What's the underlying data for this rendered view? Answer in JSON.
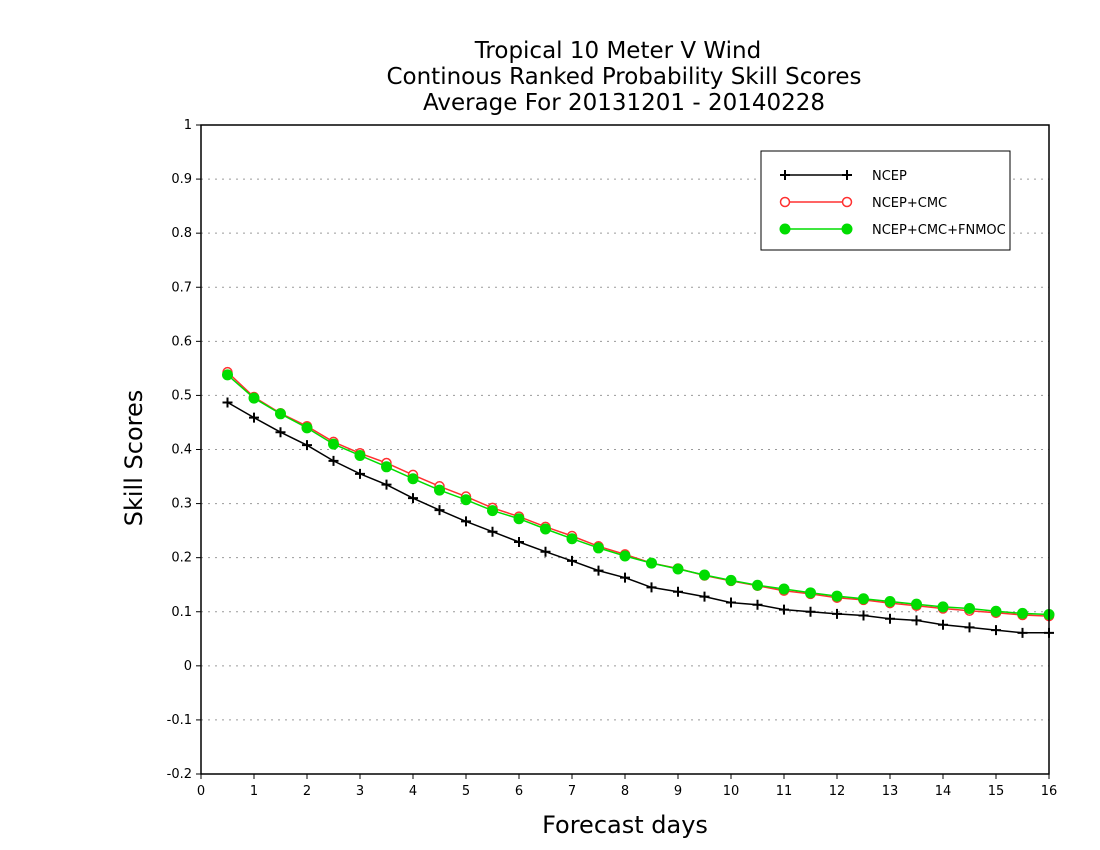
{
  "chart_data": {
    "type": "line",
    "title": [
      "Tropical 10 Meter V Wind",
      "Continous Ranked Probability Skill Scores",
      "Average For 20131201 - 20140228"
    ],
    "xlabel": "Forecast days",
    "ylabel": "Skill Scores",
    "xlim": [
      0,
      16
    ],
    "ylim": [
      -0.2,
      1
    ],
    "x_ticks": [
      0,
      1,
      2,
      3,
      4,
      5,
      6,
      7,
      8,
      9,
      10,
      11,
      12,
      13,
      14,
      15,
      16
    ],
    "x_tick_labels": [
      "0",
      "1",
      "2",
      "3",
      "4",
      "5",
      "6",
      "7",
      "8",
      "9",
      "10",
      "11",
      "12",
      "13",
      "14",
      "15",
      "16"
    ],
    "y_ticks": [
      -0.2,
      -0.1,
      0,
      0.1,
      0.2,
      0.3,
      0.4,
      0.5,
      0.6,
      0.7,
      0.8,
      0.9,
      1
    ],
    "y_tick_labels": [
      "-0.2",
      "-0.1",
      "0",
      "0.1",
      "0.2",
      "0.3",
      "0.4",
      "0.5",
      "0.6",
      "0.7",
      "0.8",
      "0.9",
      "1"
    ],
    "grid": "horizontal dotted",
    "legend_position": "top-right",
    "x": [
      0.5,
      1,
      1.5,
      2,
      2.5,
      3,
      3.5,
      4,
      4.5,
      5,
      5.5,
      6,
      6.5,
      7,
      7.5,
      8,
      8.5,
      9,
      9.5,
      10,
      10.5,
      11,
      11.5,
      12,
      12.5,
      13,
      13.5,
      14,
      14.5,
      15,
      15.5,
      16
    ],
    "series": [
      {
        "name": "NCEP",
        "color": "#000000",
        "marker": "plus",
        "values": [
          0.487,
          0.459,
          0.432,
          0.408,
          0.379,
          0.355,
          0.335,
          0.31,
          0.288,
          0.267,
          0.248,
          0.229,
          0.211,
          0.194,
          0.176,
          0.163,
          0.145,
          0.137,
          0.128,
          0.117,
          0.113,
          0.104,
          0.1,
          0.096,
          0.093,
          0.087,
          0.084,
          0.076,
          0.071,
          0.066,
          0.061,
          0.061
        ]
      },
      {
        "name": "NCEP+CMC",
        "color": "#ff3030",
        "marker": "open-circle",
        "values": [
          0.543,
          0.497,
          0.467,
          0.443,
          0.414,
          0.393,
          0.375,
          0.353,
          0.332,
          0.313,
          0.292,
          0.276,
          0.257,
          0.24,
          0.221,
          0.206,
          0.19,
          0.18,
          0.167,
          0.157,
          0.148,
          0.139,
          0.133,
          0.126,
          0.122,
          0.116,
          0.111,
          0.106,
          0.102,
          0.098,
          0.094,
          0.092
        ]
      },
      {
        "name": "NCEP+CMC+FNMOC",
        "color": "#00dd00",
        "marker": "filled-circle",
        "values": [
          0.538,
          0.495,
          0.466,
          0.44,
          0.41,
          0.389,
          0.368,
          0.346,
          0.325,
          0.307,
          0.287,
          0.272,
          0.253,
          0.235,
          0.218,
          0.203,
          0.19,
          0.179,
          0.168,
          0.158,
          0.149,
          0.142,
          0.135,
          0.129,
          0.124,
          0.119,
          0.114,
          0.109,
          0.106,
          0.101,
          0.097,
          0.095
        ]
      }
    ]
  }
}
